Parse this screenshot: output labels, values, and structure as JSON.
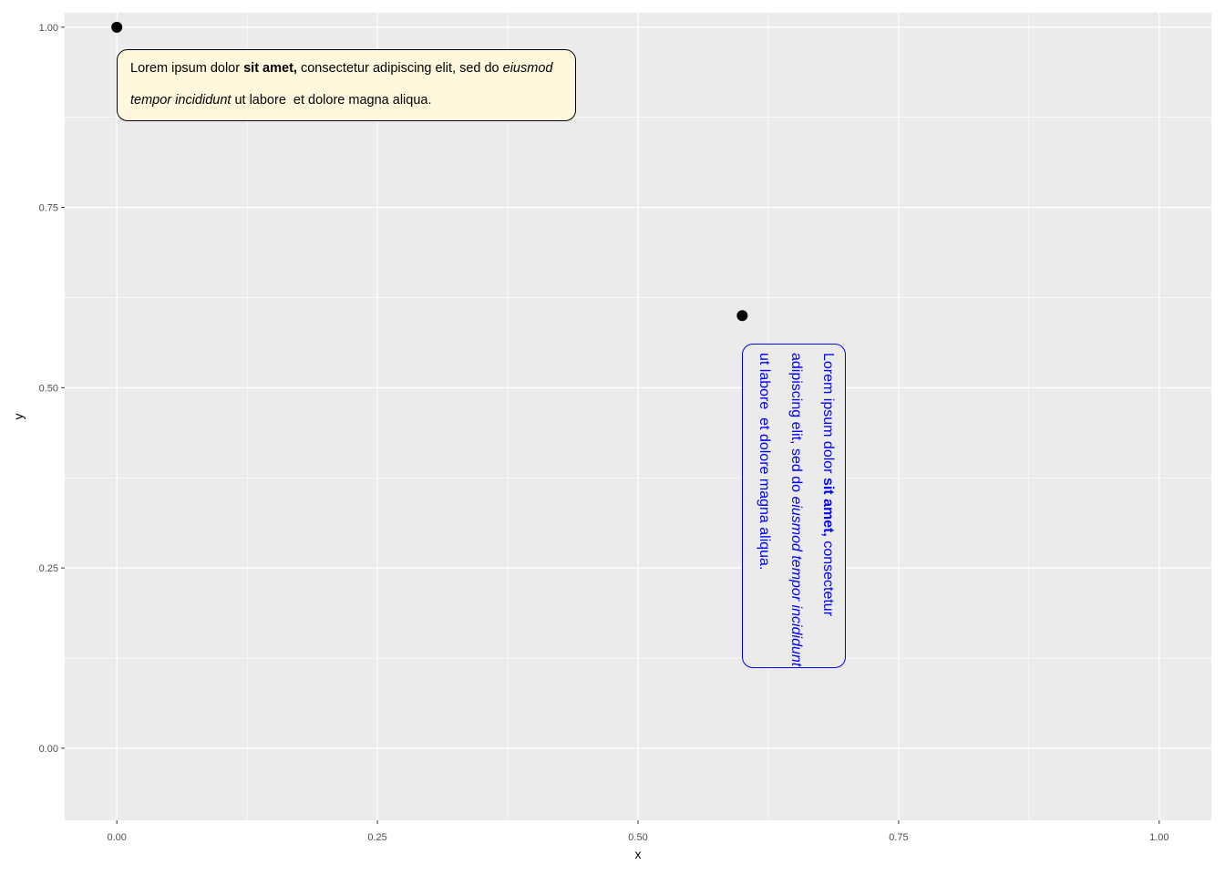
{
  "chart_data": {
    "type": "scatter",
    "title": "",
    "xlabel": "x",
    "ylabel": "y",
    "xlim": [
      -0.05,
      1.05
    ],
    "ylim": [
      -0.1,
      1.02
    ],
    "x_ticks": [
      "0.00",
      "0.25",
      "0.50",
      "0.75",
      "1.00"
    ],
    "y_ticks": [
      "0.00",
      "0.25",
      "0.50",
      "0.75",
      "1.00"
    ],
    "grid": true,
    "points": [
      {
        "x": 0,
        "y": 1
      },
      {
        "x": 0.6,
        "y": 0.6
      }
    ],
    "annotations": [
      {
        "x": 0,
        "y": 1,
        "orientation": "horizontal",
        "fill": "#fff8dc",
        "border_color": "#000000",
        "text_color": "#000000",
        "lines": [
          [
            {
              "text": "Lorem ipsum dolor ",
              "style": "normal"
            },
            {
              "text": "sit amet,",
              "style": "bold"
            },
            {
              "text": " consectetur adipiscing elit, sed do ",
              "style": "normal"
            },
            {
              "text": "eiusmod",
              "style": "italic"
            }
          ],
          [
            {
              "text": "tempor incididunt",
              "style": "italic"
            },
            {
              "text": " ut labore  et dolore magna aliqua.",
              "style": "normal"
            }
          ]
        ]
      },
      {
        "x": 0.6,
        "y": 0.6,
        "orientation": "rotated-90",
        "fill": "#ebebeb",
        "border_color": "#0000ff",
        "text_color": "#0000ff",
        "lines": [
          [
            {
              "text": "Lorem ipsum dolor ",
              "style": "normal"
            },
            {
              "text": "sit amet,",
              "style": "bold"
            },
            {
              "text": " consectetur",
              "style": "normal"
            }
          ],
          [
            {
              "text": "adipiscing elit, sed do ",
              "style": "normal"
            },
            {
              "text": "eiusmod tempor incididunt",
              "style": "italic"
            }
          ],
          [
            {
              "text": "ut labore  et dolore magna aliqua.",
              "style": "normal"
            }
          ]
        ]
      }
    ]
  }
}
